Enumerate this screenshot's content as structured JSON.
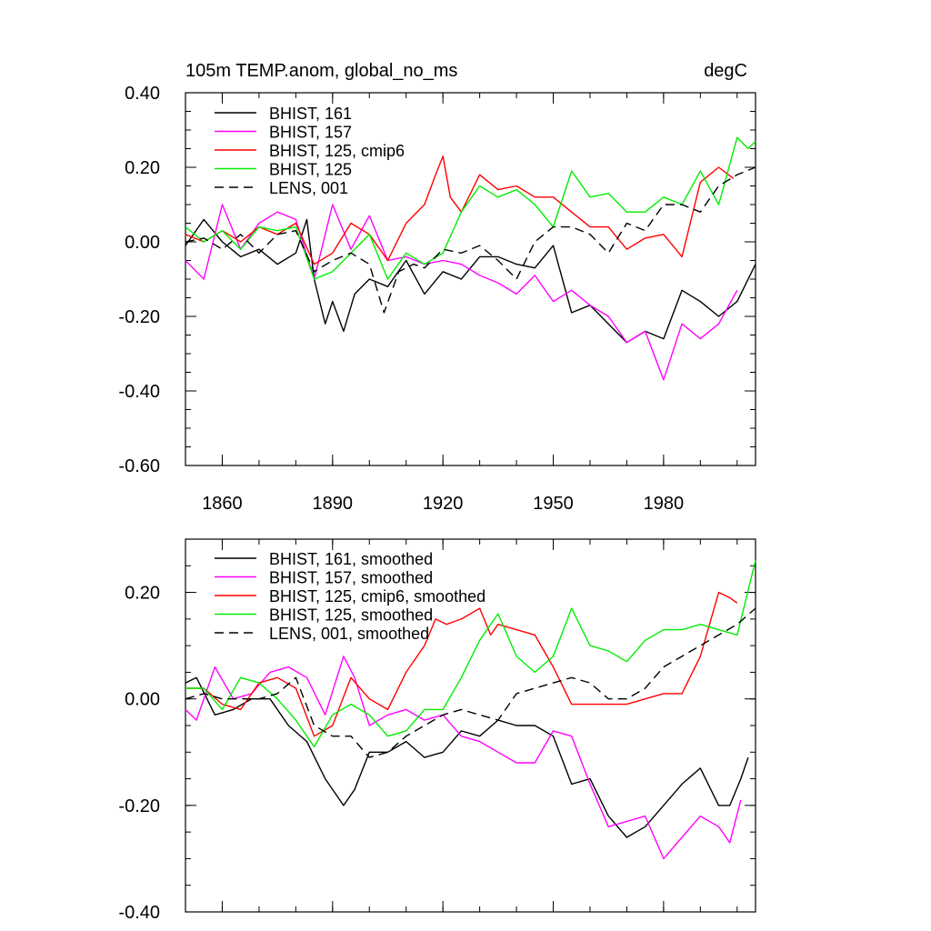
{
  "chart_data": [
    {
      "type": "line",
      "title": "105m TEMP.anom, global_no_ms",
      "units": "degC",
      "xlim": [
        1850,
        2005
      ],
      "ylim": [
        -0.6,
        0.4
      ],
      "x_ticks": [
        1860,
        1890,
        1920,
        1950,
        1980
      ],
      "x_tick_labels": [
        "1860",
        "1890",
        "1920",
        "1950",
        "1980"
      ],
      "y_ticks": [
        -0.6,
        -0.4,
        -0.2,
        0.0,
        0.2,
        0.4
      ],
      "y_tick_labels": [
        "-0.60",
        "-0.40",
        "-0.20",
        "0.00",
        "0.20",
        "0.40"
      ],
      "legend_position": "top-left",
      "series": [
        {
          "name": "BHIST, 161",
          "color": "#000000",
          "dash": "solid",
          "x": [
            1850,
            1855,
            1860,
            1865,
            1870,
            1875,
            1880,
            1883,
            1885,
            1888,
            1890,
            1893,
            1896,
            1900,
            1905,
            1910,
            1915,
            1920,
            1925,
            1930,
            1935,
            1940,
            1945,
            1950,
            1955,
            1960,
            1965,
            1970,
            1975,
            1980,
            1985,
            1990,
            1995,
            2000,
            2005
          ],
          "y": [
            -0.01,
            0.06,
            0.0,
            -0.04,
            -0.02,
            -0.06,
            -0.03,
            0.06,
            -0.1,
            -0.22,
            -0.16,
            -0.24,
            -0.14,
            -0.1,
            -0.12,
            -0.05,
            -0.14,
            -0.08,
            -0.1,
            -0.04,
            -0.04,
            -0.06,
            -0.07,
            -0.01,
            -0.19,
            -0.17,
            -0.22,
            -0.27,
            -0.24,
            -0.26,
            -0.13,
            -0.16,
            -0.2,
            -0.16,
            -0.06
          ]
        },
        {
          "name": "BHIST, 157",
          "color": "#ff00ff",
          "dash": "solid",
          "x": [
            1850,
            1855,
            1860,
            1865,
            1870,
            1875,
            1880,
            1885,
            1890,
            1895,
            1900,
            1905,
            1910,
            1915,
            1920,
            1925,
            1930,
            1935,
            1940,
            1945,
            1950,
            1955,
            1960,
            1965,
            1970,
            1975,
            1980,
            1985,
            1990,
            1995,
            2000
          ],
          "y": [
            -0.05,
            -0.1,
            0.1,
            -0.02,
            0.05,
            0.08,
            0.06,
            -0.1,
            0.1,
            -0.02,
            0.07,
            -0.05,
            -0.04,
            -0.06,
            -0.05,
            -0.06,
            -0.09,
            -0.11,
            -0.14,
            -0.09,
            -0.16,
            -0.13,
            -0.17,
            -0.2,
            -0.27,
            -0.24,
            -0.37,
            -0.22,
            -0.26,
            -0.22,
            -0.13
          ]
        },
        {
          "name": "BHIST, 125, cmip6",
          "color": "#ff0000",
          "dash": "solid",
          "x": [
            1850,
            1855,
            1860,
            1865,
            1870,
            1875,
            1880,
            1885,
            1890,
            1895,
            1900,
            1905,
            1910,
            1915,
            1918,
            1920,
            1922,
            1925,
            1930,
            1935,
            1940,
            1945,
            1950,
            1955,
            1960,
            1965,
            1970,
            1975,
            1980,
            1985,
            1990,
            1995,
            1999
          ],
          "y": [
            0.02,
            0.0,
            0.03,
            0.0,
            0.04,
            0.02,
            0.05,
            -0.06,
            -0.03,
            0.05,
            0.02,
            -0.05,
            0.05,
            0.1,
            0.18,
            0.23,
            0.12,
            0.08,
            0.18,
            0.14,
            0.15,
            0.12,
            0.12,
            0.08,
            0.04,
            0.04,
            -0.02,
            0.01,
            0.02,
            -0.04,
            0.16,
            0.2,
            0.17
          ]
        },
        {
          "name": "BHIST, 125",
          "color": "#00ee00",
          "dash": "solid",
          "x": [
            1850,
            1855,
            1860,
            1865,
            1870,
            1875,
            1880,
            1885,
            1890,
            1895,
            1900,
            1905,
            1910,
            1915,
            1920,
            1925,
            1930,
            1935,
            1940,
            1945,
            1950,
            1955,
            1960,
            1965,
            1970,
            1975,
            1980,
            1985,
            1990,
            1995,
            2000,
            2003,
            2005
          ],
          "y": [
            0.04,
            0.0,
            0.03,
            -0.02,
            0.04,
            0.03,
            0.04,
            -0.1,
            -0.08,
            -0.03,
            0.02,
            -0.1,
            -0.03,
            -0.06,
            -0.03,
            0.08,
            0.15,
            0.12,
            0.14,
            0.1,
            0.04,
            0.19,
            0.12,
            0.13,
            0.08,
            0.08,
            0.12,
            0.1,
            0.19,
            0.1,
            0.28,
            0.25,
            0.27
          ]
        },
        {
          "name": "LENS, 001",
          "color": "#000000",
          "dash": "dashed",
          "x": [
            1850,
            1855,
            1860,
            1865,
            1870,
            1875,
            1880,
            1885,
            1890,
            1895,
            1900,
            1904,
            1908,
            1912,
            1915,
            1920,
            1925,
            1930,
            1935,
            1940,
            1945,
            1950,
            1955,
            1960,
            1965,
            1970,
            1975,
            1980,
            1985,
            1990,
            1995,
            2000,
            2005
          ],
          "y": [
            0.0,
            0.01,
            -0.02,
            0.02,
            -0.03,
            0.02,
            0.03,
            -0.08,
            -0.05,
            -0.03,
            -0.06,
            -0.19,
            -0.08,
            -0.06,
            -0.07,
            -0.02,
            -0.03,
            -0.01,
            -0.05,
            -0.1,
            0.0,
            0.04,
            0.04,
            0.02,
            -0.03,
            0.05,
            0.03,
            0.1,
            0.1,
            0.08,
            0.15,
            0.18,
            0.2
          ]
        }
      ]
    },
    {
      "type": "line",
      "xlim": [
        1850,
        2005
      ],
      "ylim": [
        -0.4,
        0.3
      ],
      "x_ticks": [
        1860,
        1890,
        1920,
        1950,
        1980
      ],
      "x_tick_labels": [],
      "y_ticks": [
        -0.4,
        -0.2,
        0.0,
        0.2
      ],
      "y_tick_labels": [
        "-0.40",
        "-0.20",
        "0.00",
        "0.20"
      ],
      "legend_position": "top-left",
      "series": [
        {
          "name": "BHIST, 161, smoothed",
          "color": "#000000",
          "dash": "solid",
          "x": [
            1850,
            1853,
            1858,
            1863,
            1868,
            1873,
            1878,
            1883,
            1888,
            1893,
            1896,
            1900,
            1905,
            1910,
            1915,
            1920,
            1925,
            1930,
            1935,
            1940,
            1945,
            1950,
            1955,
            1960,
            1965,
            1970,
            1975,
            1980,
            1985,
            1990,
            1995,
            1998,
            2001,
            2003
          ],
          "y": [
            0.03,
            0.04,
            -0.03,
            -0.02,
            0.0,
            0.0,
            -0.05,
            -0.08,
            -0.15,
            -0.2,
            -0.17,
            -0.1,
            -0.1,
            -0.08,
            -0.11,
            -0.1,
            -0.06,
            -0.07,
            -0.04,
            -0.05,
            -0.05,
            -0.07,
            -0.16,
            -0.15,
            -0.22,
            -0.26,
            -0.24,
            -0.2,
            -0.16,
            -0.13,
            -0.2,
            -0.2,
            -0.15,
            -0.11
          ]
        },
        {
          "name": "BHIST, 157, smoothed",
          "color": "#ff00ff",
          "dash": "solid",
          "x": [
            1850,
            1853,
            1858,
            1863,
            1868,
            1873,
            1878,
            1883,
            1888,
            1893,
            1896,
            1900,
            1905,
            1910,
            1915,
            1920,
            1925,
            1930,
            1935,
            1940,
            1945,
            1950,
            1955,
            1960,
            1965,
            1970,
            1975,
            1980,
            1985,
            1990,
            1995,
            1998,
            2001
          ],
          "y": [
            -0.02,
            -0.04,
            0.06,
            0.0,
            0.01,
            0.05,
            0.06,
            0.04,
            -0.03,
            0.08,
            0.04,
            -0.05,
            -0.03,
            -0.02,
            -0.04,
            -0.03,
            -0.07,
            -0.08,
            -0.1,
            -0.12,
            -0.12,
            -0.06,
            -0.07,
            -0.16,
            -0.24,
            -0.23,
            -0.22,
            -0.3,
            -0.26,
            -0.22,
            -0.24,
            -0.27,
            -0.19
          ]
        },
        {
          "name": "BHIST, 125, cmip6, smoothed",
          "color": "#ff0000",
          "dash": "solid",
          "x": [
            1850,
            1855,
            1860,
            1865,
            1870,
            1875,
            1880,
            1885,
            1890,
            1895,
            1900,
            1905,
            1910,
            1915,
            1918,
            1921,
            1925,
            1930,
            1933,
            1935,
            1940,
            1945,
            1950,
            1955,
            1960,
            1965,
            1970,
            1975,
            1980,
            1985,
            1990,
            1995,
            1998,
            2000
          ],
          "y": [
            0.02,
            0.02,
            -0.01,
            -0.02,
            0.03,
            0.04,
            0.02,
            -0.07,
            -0.05,
            0.04,
            0.0,
            -0.02,
            0.05,
            0.1,
            0.15,
            0.14,
            0.15,
            0.17,
            0.12,
            0.14,
            0.13,
            0.12,
            0.06,
            -0.01,
            -0.01,
            -0.01,
            -0.01,
            0.0,
            0.01,
            0.01,
            0.08,
            0.2,
            0.19,
            0.18
          ]
        },
        {
          "name": "BHIST, 125, smoothed",
          "color": "#00ee00",
          "dash": "solid",
          "x": [
            1850,
            1855,
            1860,
            1865,
            1870,
            1875,
            1880,
            1885,
            1890,
            1895,
            1900,
            1905,
            1910,
            1915,
            1920,
            1925,
            1930,
            1935,
            1940,
            1945,
            1950,
            1955,
            1960,
            1965,
            1970,
            1975,
            1980,
            1985,
            1990,
            1995,
            2000,
            2005
          ],
          "y": [
            0.02,
            0.02,
            -0.02,
            0.04,
            0.03,
            0.0,
            -0.04,
            -0.09,
            -0.03,
            -0.01,
            -0.03,
            -0.07,
            -0.06,
            -0.02,
            -0.02,
            0.04,
            0.11,
            0.16,
            0.08,
            0.05,
            0.08,
            0.17,
            0.1,
            0.09,
            0.07,
            0.11,
            0.13,
            0.13,
            0.14,
            0.13,
            0.12,
            0.26
          ]
        },
        {
          "name": "LENS, 001, smoothed",
          "color": "#000000",
          "dash": "dashed",
          "x": [
            1850,
            1855,
            1860,
            1865,
            1870,
            1875,
            1880,
            1885,
            1890,
            1895,
            1900,
            1905,
            1910,
            1915,
            1920,
            1925,
            1930,
            1935,
            1940,
            1945,
            1950,
            1955,
            1960,
            1965,
            1970,
            1975,
            1980,
            1985,
            1990,
            1995,
            2000,
            2005
          ],
          "y": [
            0.0,
            0.01,
            0.0,
            0.0,
            0.0,
            0.01,
            0.04,
            -0.05,
            -0.07,
            -0.07,
            -0.11,
            -0.1,
            -0.07,
            -0.05,
            -0.03,
            -0.02,
            -0.03,
            -0.04,
            0.01,
            0.02,
            0.03,
            0.04,
            0.03,
            0.0,
            0.0,
            0.02,
            0.06,
            0.08,
            0.1,
            0.12,
            0.14,
            0.17
          ]
        }
      ]
    }
  ]
}
